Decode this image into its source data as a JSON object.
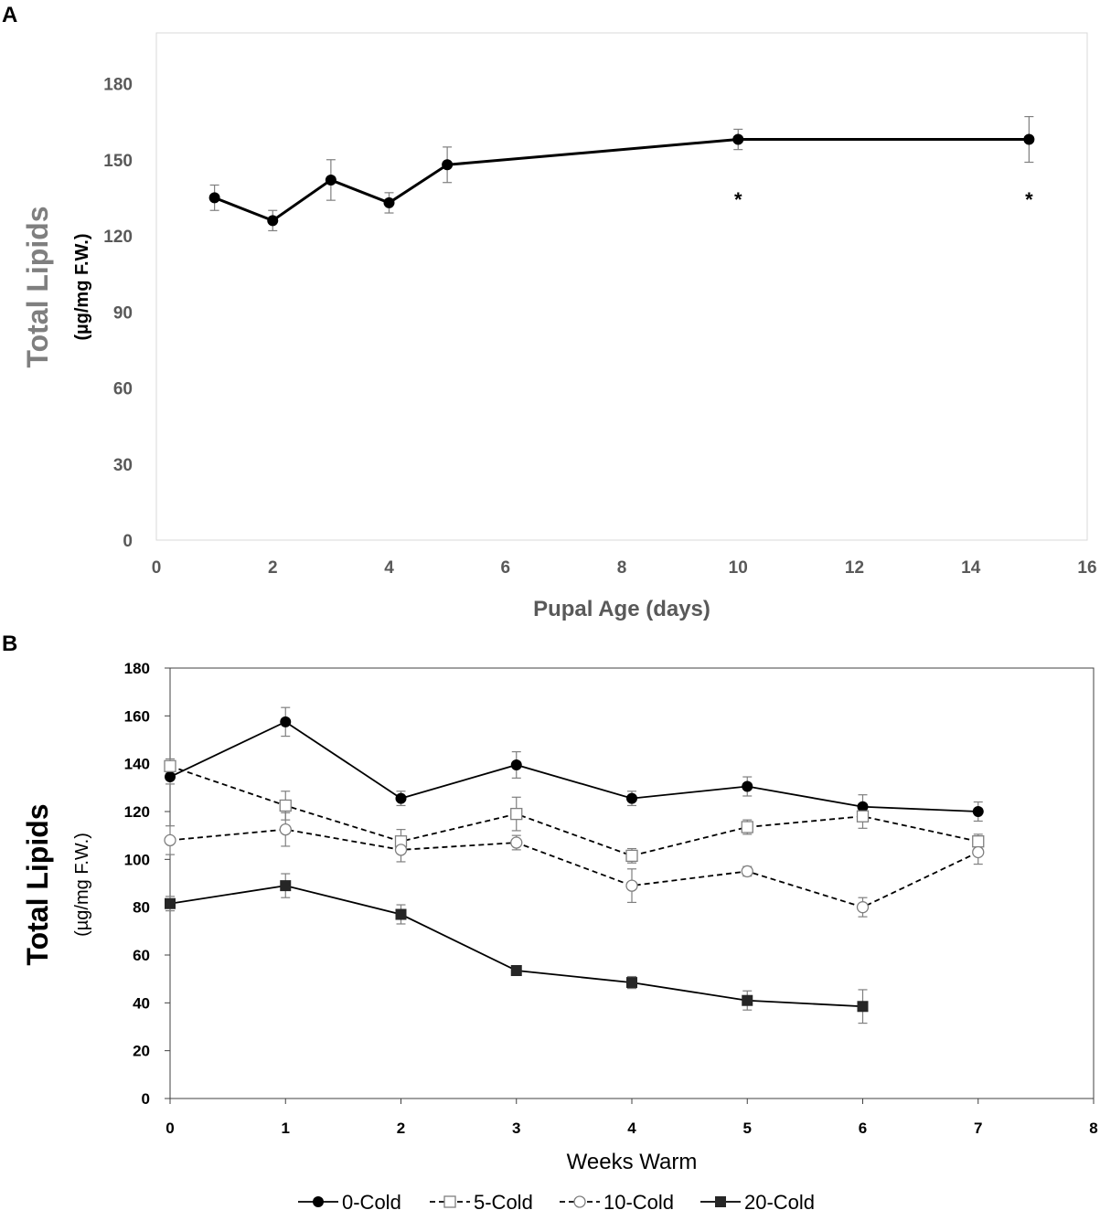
{
  "chart_data": [
    {
      "panel": "A",
      "type": "line",
      "xlabel": "Pupal Age (days)",
      "ylabel": "Total Lipids",
      "ylabel_units": "(µg/mg F.W.)",
      "xlim": [
        0,
        16
      ],
      "ylim": [
        0,
        200
      ],
      "xticks": [
        "0",
        "2",
        "4",
        "6",
        "8",
        "10",
        "12",
        "14",
        "16"
      ],
      "yticks": [
        "0",
        "30",
        "60",
        "90",
        "120",
        "150",
        "180"
      ],
      "note": "x axis is categorical: tick positions 0-16 labeled 0,2,4,6,8,10,12,14,16; points at days 10 and 15 are drawn at positions 10 and 15",
      "series": [
        {
          "name": "Total Lipids",
          "x": [
            1,
            2,
            3,
            4,
            5,
            10,
            15
          ],
          "y": [
            135,
            126,
            142,
            133,
            148,
            158,
            158
          ],
          "err": [
            5,
            4,
            8,
            4,
            7,
            4,
            9
          ]
        }
      ],
      "annotations": [
        {
          "x": 10,
          "text": "*"
        },
        {
          "x": 15,
          "text": "*"
        }
      ]
    },
    {
      "panel": "B",
      "type": "line",
      "xlabel": "Weeks Warm",
      "ylabel": "Total Lipids",
      "ylabel_units": "(µg/mg F.W.)",
      "xlim": [
        0,
        8
      ],
      "ylim": [
        0,
        180
      ],
      "xticks": [
        "0",
        "1",
        "2",
        "3",
        "4",
        "5",
        "6",
        "7",
        "8"
      ],
      "yticks": [
        "0",
        "20",
        "40",
        "60",
        "80",
        "100",
        "120",
        "140",
        "160",
        "180"
      ],
      "series": [
        {
          "name": "0-Cold",
          "x": [
            0,
            1,
            2,
            3,
            4,
            5,
            6,
            7
          ],
          "y": [
            134.5,
            157.5,
            125.5,
            139.5,
            125.5,
            130.5,
            122,
            120
          ],
          "err": [
            3,
            6,
            3,
            5.5,
            3,
            4,
            5,
            4
          ],
          "marker": "circle-filled",
          "dash": false
        },
        {
          "name": "5-Cold",
          "x": [
            0,
            1,
            2,
            3,
            4,
            5,
            6,
            7
          ],
          "y": [
            139,
            122.5,
            107.5,
            119,
            101.5,
            113.5,
            118,
            107.5
          ],
          "err": [
            3,
            6,
            5,
            7,
            3,
            3,
            5,
            3
          ],
          "marker": "square-open",
          "dash": true
        },
        {
          "name": "10-Cold",
          "x": [
            0,
            1,
            2,
            3,
            4,
            5,
            6,
            7
          ],
          "y": [
            108,
            112.5,
            104,
            107,
            89,
            95,
            80,
            103
          ],
          "err": [
            6,
            7,
            5,
            3,
            7,
            2,
            4,
            5
          ],
          "marker": "circle-open",
          "dash": true
        },
        {
          "name": "20-Cold",
          "x": [
            0,
            1,
            2,
            3,
            4,
            5,
            6
          ],
          "y": [
            81.5,
            89,
            77,
            53.5,
            48.5,
            41,
            38.5
          ],
          "err": [
            3,
            5,
            4,
            2,
            2.5,
            4,
            7
          ],
          "marker": "square-filled",
          "dash": false
        }
      ]
    }
  ]
}
